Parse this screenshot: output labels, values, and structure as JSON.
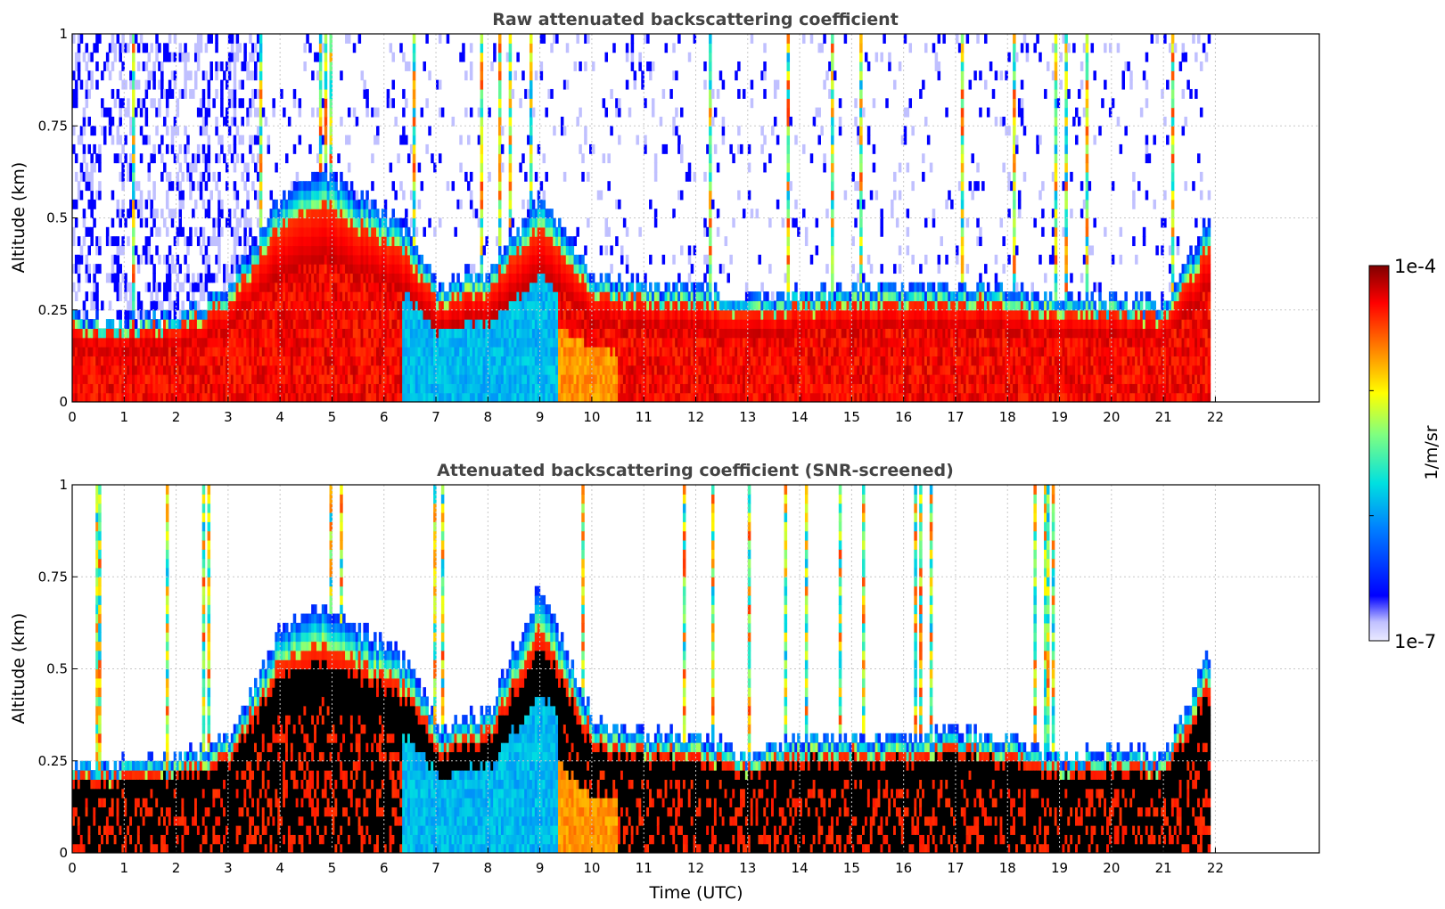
{
  "chart_data": [
    {
      "type": "heatmap",
      "title": "Raw attenuated backscattering coefficient",
      "xlabel": "",
      "ylabel": "Altitude (km)",
      "xlim": [
        0,
        24
      ],
      "ylim": [
        0,
        1
      ],
      "x_ticks": [
        "0",
        "1",
        "2",
        "3",
        "4",
        "5",
        "6",
        "7",
        "8",
        "9",
        "10",
        "11",
        "12",
        "13",
        "14",
        "15",
        "16",
        "17",
        "18",
        "19",
        "20",
        "21",
        "22"
      ],
      "y_ticks": [
        "0",
        "0.25",
        "0.5",
        "0.75",
        "1"
      ],
      "data_end_hour": 21.9,
      "grid": true,
      "screened": false,
      "layer_tops_km": [
        {
          "t": 0,
          "top": 0.22
        },
        {
          "t": 1,
          "top": 0.21
        },
        {
          "t": 2,
          "top": 0.22
        },
        {
          "t": 3,
          "top": 0.3
        },
        {
          "t": 4,
          "top": 0.55
        },
        {
          "t": 4.8,
          "top": 0.62
        },
        {
          "t": 5.5,
          "top": 0.55
        },
        {
          "t": 6.5,
          "top": 0.45
        },
        {
          "t": 7,
          "top": 0.3
        },
        {
          "t": 8,
          "top": 0.35
        },
        {
          "t": 9,
          "top": 0.55
        },
        {
          "t": 10,
          "top": 0.33
        },
        {
          "t": 11,
          "top": 0.3
        },
        {
          "t": 12,
          "top": 0.3
        },
        {
          "t": 13,
          "top": 0.27
        },
        {
          "t": 14,
          "top": 0.28
        },
        {
          "t": 15,
          "top": 0.3
        },
        {
          "t": 16,
          "top": 0.3
        },
        {
          "t": 17,
          "top": 0.3
        },
        {
          "t": 18,
          "top": 0.3
        },
        {
          "t": 19,
          "top": 0.26
        },
        {
          "t": 20,
          "top": 0.27
        },
        {
          "t": 21,
          "top": 0.25
        },
        {
          "t": 21.9,
          "top": 0.5
        }
      ]
    },
    {
      "type": "heatmap",
      "title": "Attenuated backscattering coefficient (SNR-screened)",
      "xlabel": "Time (UTC)",
      "ylabel": "Altitude (km)",
      "xlim": [
        0,
        24
      ],
      "ylim": [
        0,
        1
      ],
      "x_ticks": [
        "0",
        "1",
        "2",
        "3",
        "4",
        "5",
        "6",
        "7",
        "8",
        "9",
        "10",
        "11",
        "12",
        "13",
        "14",
        "15",
        "16",
        "17",
        "18",
        "19",
        "20",
        "21",
        "22"
      ],
      "y_ticks": [
        "0",
        "0.25",
        "0.5",
        "0.75",
        "1"
      ],
      "data_end_hour": 21.9,
      "grid": true,
      "screened": true,
      "layer_tops_km": [
        {
          "t": 0,
          "top": 0.23
        },
        {
          "t": 1,
          "top": 0.23
        },
        {
          "t": 2,
          "top": 0.24
        },
        {
          "t": 3,
          "top": 0.3
        },
        {
          "t": 4,
          "top": 0.6
        },
        {
          "t": 4.8,
          "top": 0.65
        },
        {
          "t": 5.5,
          "top": 0.6
        },
        {
          "t": 6.5,
          "top": 0.5
        },
        {
          "t": 7,
          "top": 0.32
        },
        {
          "t": 8,
          "top": 0.37
        },
        {
          "t": 9,
          "top": 0.72
        },
        {
          "t": 10,
          "top": 0.35
        },
        {
          "t": 11,
          "top": 0.31
        },
        {
          "t": 12,
          "top": 0.3
        },
        {
          "t": 13,
          "top": 0.25
        },
        {
          "t": 14,
          "top": 0.3
        },
        {
          "t": 15,
          "top": 0.3
        },
        {
          "t": 16,
          "top": 0.3
        },
        {
          "t": 17,
          "top": 0.32
        },
        {
          "t": 18,
          "top": 0.3
        },
        {
          "t": 19,
          "top": 0.25
        },
        {
          "t": 20,
          "top": 0.27
        },
        {
          "t": 21,
          "top": 0.25
        },
        {
          "t": 21.9,
          "top": 0.55
        }
      ]
    }
  ],
  "colorbar": {
    "max_label": "1e-4",
    "min_label": "1e-7",
    "unit_label": "1/m/sr",
    "scale": "log",
    "colormap": "jet",
    "min_color": "#eaeaff",
    "max_color": "#800000"
  },
  "colors": {
    "title_text": "#444444",
    "grid": "#c8c8c8",
    "screened_fill": "#000000"
  }
}
